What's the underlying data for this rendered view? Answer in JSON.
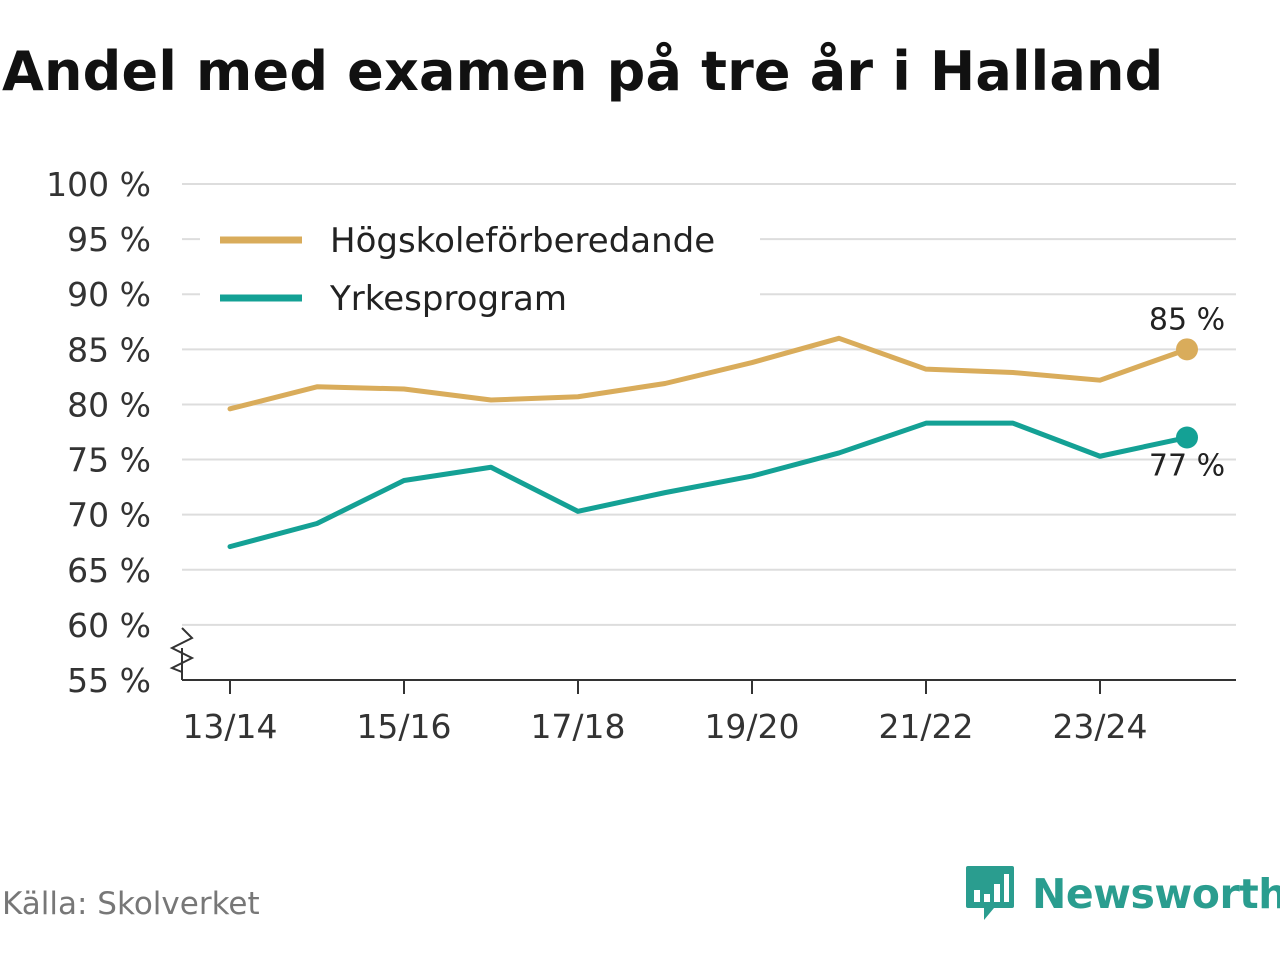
{
  "title": "Andel med examen på tre år i Halland",
  "source": "Källa: Skolverket",
  "brand": {
    "name": "Newsworthy",
    "icon": "newsworthy-logo-icon",
    "color": "#2a9d8f"
  },
  "chart_data": {
    "type": "line",
    "title": "Andel med examen på tre år i Halland",
    "xlabel": "",
    "ylabel": "",
    "categories": [
      "13/14",
      "14/15",
      "15/16",
      "16/17",
      "17/18",
      "18/19",
      "19/20",
      "20/21",
      "21/22",
      "22/23",
      "23/24",
      "24/25"
    ],
    "x_tick_labels": [
      "13/14",
      "15/16",
      "17/18",
      "19/20",
      "21/22",
      "23/24"
    ],
    "y_ticks": [
      55,
      60,
      65,
      70,
      75,
      80,
      85,
      90,
      95,
      100
    ],
    "y_tick_labels": [
      "55 %",
      "60 %",
      "65 %",
      "70 %",
      "75 %",
      "80 %",
      "85 %",
      "90 %",
      "95 %",
      "100 %"
    ],
    "ylim": [
      55,
      100
    ],
    "y_axis_break": true,
    "grid": true,
    "legend_position": "top-left",
    "series": [
      {
        "name": "Högskoleförberedande",
        "color": "#d9ac5b",
        "values": [
          79.6,
          81.6,
          81.4,
          80.4,
          80.7,
          81.9,
          83.8,
          86.0,
          83.2,
          82.9,
          82.2,
          85.0
        ],
        "end_label": "85 %"
      },
      {
        "name": "Yrkesprogram",
        "color": "#14a195",
        "values": [
          67.1,
          69.2,
          73.1,
          74.3,
          70.3,
          72.0,
          73.5,
          75.6,
          78.3,
          78.3,
          75.3,
          77.0
        ],
        "end_label": "77 %"
      }
    ]
  }
}
